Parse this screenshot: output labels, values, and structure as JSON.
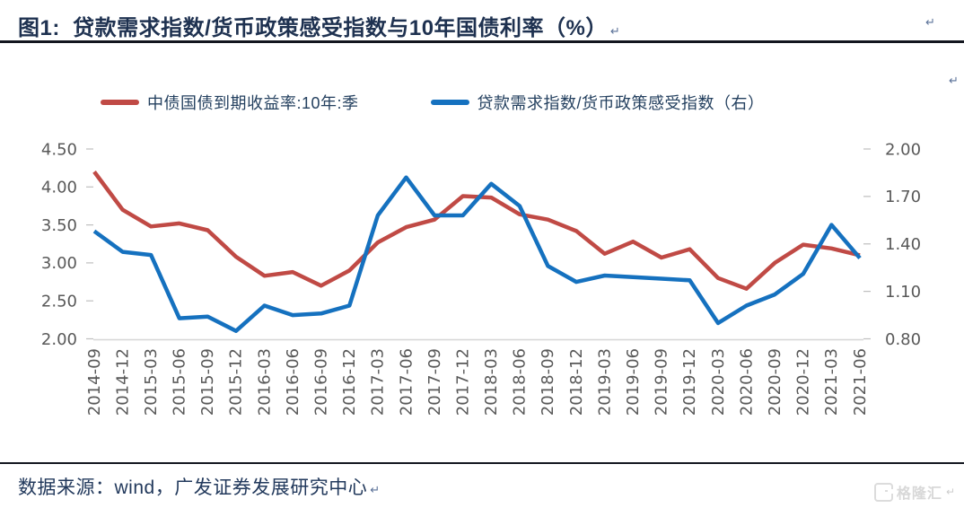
{
  "header": {
    "title": "图1:  贷款需求指数/货币政策感受指数与10年国债利率（%）",
    "paragraph_mark": "↵"
  },
  "legend": [
    {
      "label": "中债国债到期收益率:10年:季",
      "color": "#C04A45"
    },
    {
      "label": "贷款需求指数/货币政策感受指数（右）",
      "color": "#1571BF"
    }
  ],
  "chart_data": {
    "type": "line",
    "title": "贷款需求指数/货币政策感受指数与10年国债利率（%）",
    "categories": [
      "2014-09",
      "2014-12",
      "2015-03",
      "2015-06",
      "2015-09",
      "2015-12",
      "2016-03",
      "2016-06",
      "2016-09",
      "2016-12",
      "2017-03",
      "2017-06",
      "2017-09",
      "2017-12",
      "2018-03",
      "2018-06",
      "2018-09",
      "2018-12",
      "2019-03",
      "2019-06",
      "2019-09",
      "2019-12",
      "2020-03",
      "2020-06",
      "2020-09",
      "2020-12",
      "2021-03",
      "2021-06"
    ],
    "series": [
      {
        "name": "中债国债到期收益率:10年:季",
        "axis": "left",
        "color": "#C04A45",
        "values": [
          4.2,
          3.7,
          3.48,
          3.52,
          3.43,
          3.08,
          2.83,
          2.88,
          2.7,
          2.9,
          3.27,
          3.47,
          3.57,
          3.88,
          3.86,
          3.64,
          3.57,
          3.42,
          3.12,
          3.28,
          3.07,
          3.18,
          2.8,
          2.66,
          3.0,
          3.24,
          3.19,
          3.1
        ]
      },
      {
        "name": "贷款需求指数/货币政策感受指数（右）",
        "axis": "right",
        "color": "#1571BF",
        "values": [
          1.48,
          1.35,
          1.33,
          0.93,
          0.94,
          0.85,
          1.01,
          0.95,
          0.96,
          1.01,
          1.58,
          1.82,
          1.58,
          1.58,
          1.78,
          1.64,
          1.26,
          1.16,
          1.2,
          1.19,
          1.18,
          1.17,
          0.9,
          1.01,
          1.08,
          1.21,
          1.52,
          1.31
        ]
      }
    ],
    "left_axis": {
      "min": 2.0,
      "max": 4.5,
      "ticks": [
        "4.50",
        "4.00",
        "3.50",
        "3.00",
        "2.50",
        "2.00"
      ]
    },
    "right_axis": {
      "min": 0.8,
      "max": 2.0,
      "ticks": [
        "2.00",
        "1.70",
        "1.40",
        "1.10",
        "0.80"
      ]
    },
    "grid": false,
    "legend_position": "top",
    "tick_label_color": "#595959",
    "axis_line_color": "#D6D6D6"
  },
  "footer": {
    "source": "数据来源：wind，广发证券发展研究中心",
    "paragraph_mark": "↵",
    "watermark": "格隆汇"
  }
}
